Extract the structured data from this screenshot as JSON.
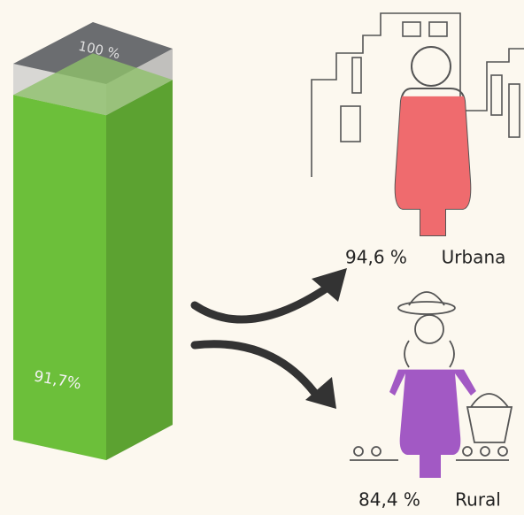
{
  "chart_data": {
    "type": "pictogram",
    "total": {
      "value": 91.7,
      "label": "91,7%",
      "max": 100,
      "max_label": "100 %",
      "color": "#6cbf3a"
    },
    "categories": [
      "Urbana",
      "Rural"
    ],
    "values": [
      94.6,
      84.4
    ],
    "value_labels": [
      "94,6 %",
      "84,4 %"
    ],
    "colors": [
      "#ef6b6e",
      "#a259c4"
    ]
  }
}
